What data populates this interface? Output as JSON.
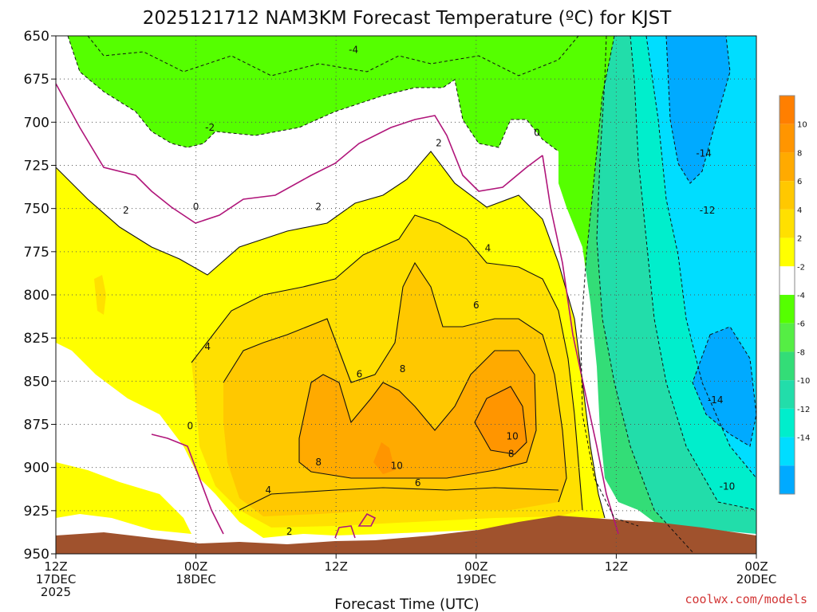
{
  "chart_data": {
    "type": "heatmap",
    "title": "2025121712 NAM3KM Forecast Temperature (ºC) for KJST",
    "xlabel": "Forecast Time (UTC)",
    "ylabel": "",
    "y_ticks": [
      650,
      675,
      700,
      725,
      750,
      775,
      800,
      825,
      850,
      875,
      900,
      925,
      950
    ],
    "y_range": [
      650,
      950
    ],
    "x_range_hours": [
      0,
      60
    ],
    "x_ticks": [
      {
        "hour": 0,
        "line1": "12Z",
        "line2": "17DEC",
        "line3": "2025"
      },
      {
        "hour": 12,
        "line1": "00Z",
        "line2": "18DEC",
        "line3": ""
      },
      {
        "hour": 24,
        "line1": "12Z",
        "line2": "",
        "line3": ""
      },
      {
        "hour": 36,
        "line1": "00Z",
        "line2": "19DEC",
        "line3": ""
      },
      {
        "hour": 48,
        "line1": "12Z",
        "line2": "",
        "line3": ""
      },
      {
        "hour": 60,
        "line1": "00Z",
        "line2": "20DEC",
        "line3": ""
      }
    ],
    "colorbar": {
      "labels": [
        "10",
        "8",
        "6",
        "4",
        "2",
        "-2",
        "-4",
        "-6",
        "-8",
        "-10",
        "-12",
        "-14"
      ],
      "colors": [
        "#ff7f00",
        "#ff9500",
        "#ffaa00",
        "#ffc800",
        "#ffe000",
        "#ffff00",
        "#ffffff",
        "#55ff00",
        "#55ee44",
        "#33dd77",
        "#22ddaa",
        "#00eecc",
        "#00ddff",
        "#00aaff"
      ]
    },
    "contour_labels": [
      {
        "hour": 25.5,
        "hpa": 658,
        "text": "-4"
      },
      {
        "hour": 13.2,
        "hpa": 703,
        "text": "-2"
      },
      {
        "hour": 41.2,
        "hpa": 706,
        "text": "0"
      },
      {
        "hour": 32.8,
        "hpa": 712,
        "text": "2"
      },
      {
        "hour": 55.5,
        "hpa": 718,
        "text": "-14"
      },
      {
        "hour": 6.0,
        "hpa": 751,
        "text": "2"
      },
      {
        "hour": 12.0,
        "hpa": 749,
        "text": "0"
      },
      {
        "hour": 22.5,
        "hpa": 749,
        "text": "2"
      },
      {
        "hour": 55.8,
        "hpa": 751,
        "text": "-12"
      },
      {
        "hour": 37.0,
        "hpa": 773,
        "text": "4"
      },
      {
        "hour": 36.0,
        "hpa": 806,
        "text": "6"
      },
      {
        "hour": 13.0,
        "hpa": 830,
        "text": "4"
      },
      {
        "hour": 29.7,
        "hpa": 843,
        "text": "8"
      },
      {
        "hour": 26.0,
        "hpa": 846,
        "text": "6"
      },
      {
        "hour": 56.5,
        "hpa": 861,
        "text": "-14"
      },
      {
        "hour": 11.5,
        "hpa": 876,
        "text": "0"
      },
      {
        "hour": 39.1,
        "hpa": 882,
        "text": "10"
      },
      {
        "hour": 39.0,
        "hpa": 892,
        "text": "8"
      },
      {
        "hour": 22.5,
        "hpa": 897,
        "text": "8"
      },
      {
        "hour": 29.2,
        "hpa": 899,
        "text": "10"
      },
      {
        "hour": 31.0,
        "hpa": 909,
        "text": "6"
      },
      {
        "hour": 18.2,
        "hpa": 913,
        "text": "4"
      },
      {
        "hour": 57.5,
        "hpa": 911,
        "text": "-10"
      },
      {
        "hour": 20.0,
        "hpa": 937,
        "text": "2"
      }
    ]
  },
  "credit": "coolwx.com/models"
}
